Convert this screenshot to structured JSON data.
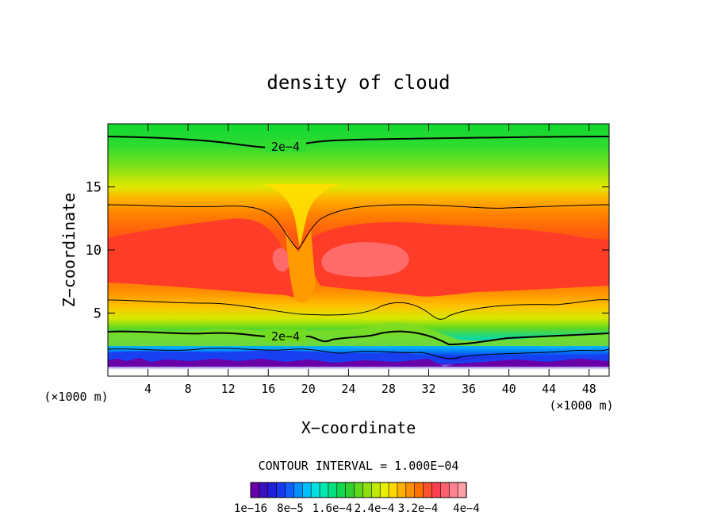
{
  "chart_data": {
    "type": "heatmap",
    "title": "density of cloud",
    "xlabel": "X−coordinate",
    "ylabel": "Z−coordinate",
    "x_unit_left": "(×1000 m)",
    "x_unit_right": "(×1000 m)",
    "xlim": [
      0,
      50
    ],
    "ylim": [
      0,
      20
    ],
    "xticks": [
      4,
      8,
      12,
      16,
      20,
      24,
      28,
      32,
      36,
      40,
      44,
      48
    ],
    "yticks": [
      5,
      10,
      15
    ],
    "contour_interval_text": "CONTOUR INTERVAL = 1.000E−04",
    "contour_label": "2e−4",
    "contour_label_2": "2e−4",
    "colorbar_labels": [
      "1e−16",
      "8e−5",
      "1.6e−4",
      "2.4e−4",
      "3.2e−4",
      "4e−4"
    ],
    "colorbar_colors": [
      "#6a00a8",
      "#3a10c0",
      "#2020d8",
      "#1838f0",
      "#1060ff",
      "#0090ff",
      "#00bfff",
      "#00e0e0",
      "#00e8b0",
      "#00e080",
      "#10d850",
      "#30d030",
      "#60d820",
      "#90e010",
      "#c0e800",
      "#e8ee00",
      "#ffd800",
      "#ffb000",
      "#ff9000",
      "#ff7000",
      "#ff5030",
      "#ff4050",
      "#ff6070",
      "#ff8090",
      "#ff9fa8"
    ],
    "field_colors": {
      "top_green": "#18dd40",
      "yellow_green": "#a8e40c",
      "yellow": "#ffe000",
      "orange": "#ff9a00",
      "red_orange": "#ff6020",
      "red": "#ff3c28",
      "pink_core": "#ff6a6a"
    }
  }
}
